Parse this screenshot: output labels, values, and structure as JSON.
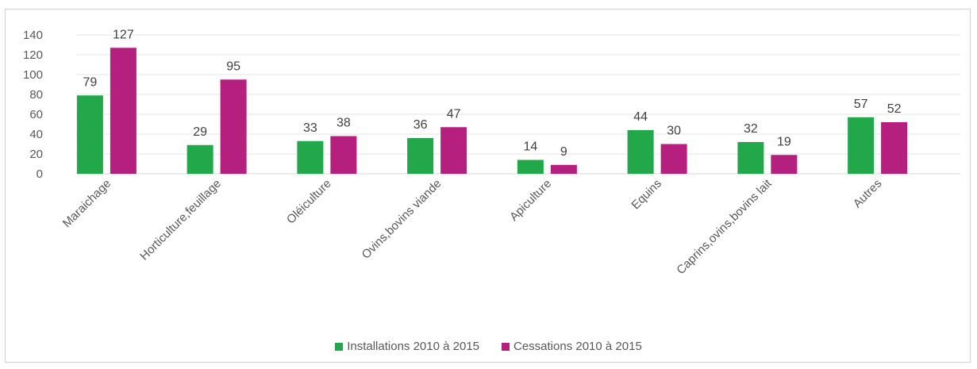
{
  "chart_data": {
    "type": "bar",
    "categories": [
      "Maraichage",
      "Horticulture,feuillage",
      "Oléiculture",
      "Ovins,bovins viande",
      "Apiculture",
      "Equins",
      "Caprins,ovins,bovins lait",
      "Autres"
    ],
    "series": [
      {
        "name": "Installations 2010 à 2015",
        "values": [
          79,
          29,
          33,
          36,
          14,
          44,
          32,
          57
        ],
        "color": "#22a84a"
      },
      {
        "name": "Cessations 2010 à 2015",
        "values": [
          127,
          95,
          38,
          47,
          9,
          30,
          19,
          52
        ],
        "color": "#b5207f"
      }
    ],
    "yticks": [
      0,
      20,
      40,
      60,
      80,
      100,
      120,
      140
    ],
    "ylim": [
      0,
      140
    ],
    "grid": true,
    "legend_position": "bottom"
  }
}
